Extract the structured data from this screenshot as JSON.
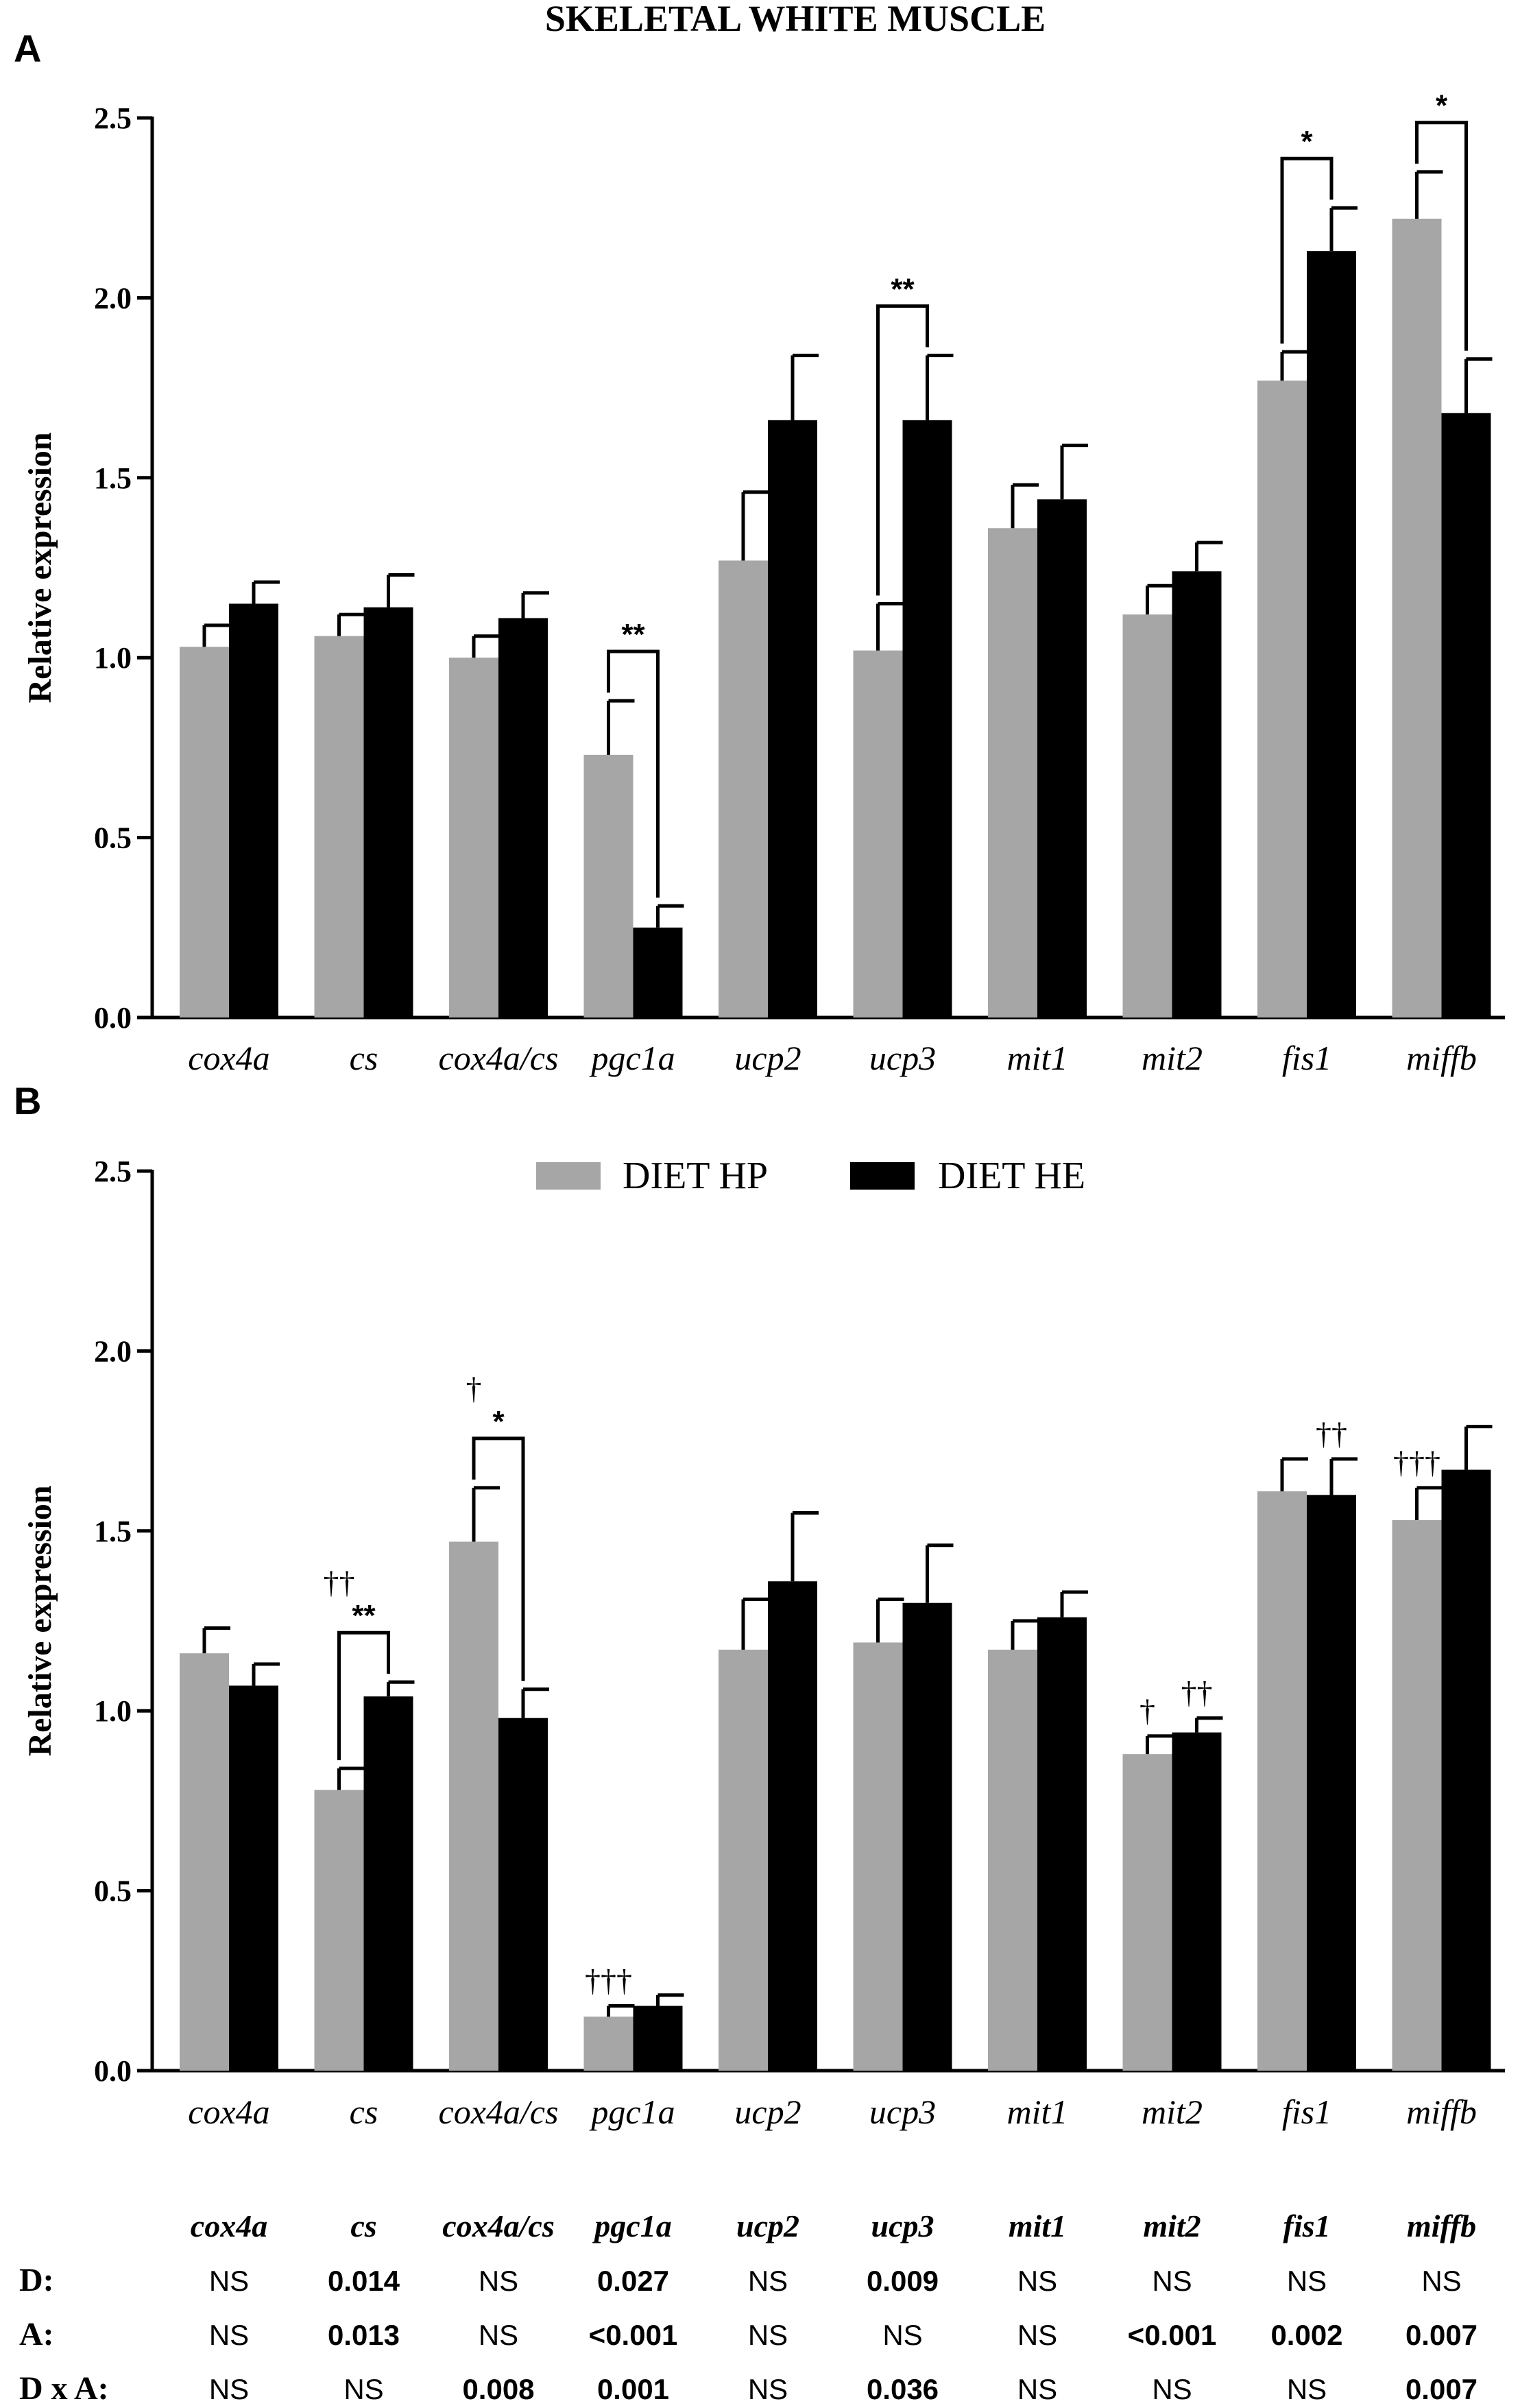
{
  "figure_title": "SKELETAL WHITE MUSCLE",
  "colors": {
    "hp": "#a6a6a6",
    "he": "#000000",
    "axis": "#000000"
  },
  "legend": [
    {
      "label": "DIET HP",
      "color": "#a6a6a6"
    },
    {
      "label": "DIET HE",
      "color": "#000000"
    }
  ],
  "chart_data": [
    {
      "panel_label": "A",
      "type": "bar",
      "ylabel": "Relative expression",
      "ylim": [
        0,
        2.5
      ],
      "yticks": [
        "0.0",
        "0.5",
        "1.0",
        "1.5",
        "2.0",
        "2.5"
      ],
      "categories": [
        "cox4a",
        "cs",
        "cox4a/cs",
        "pgc1a",
        "ucp2",
        "ucp3",
        "mit1",
        "mit2",
        "fis1",
        "miffb"
      ],
      "series": [
        {
          "name": "DIET HP",
          "values": [
            1.03,
            1.06,
            1.0,
            0.73,
            1.27,
            1.02,
            1.36,
            1.12,
            1.77,
            2.22
          ],
          "errors": [
            0.06,
            0.06,
            0.06,
            0.15,
            0.19,
            0.13,
            0.12,
            0.08,
            0.08,
            0.13
          ]
        },
        {
          "name": "DIET HE",
          "values": [
            1.15,
            1.14,
            1.11,
            0.25,
            1.66,
            1.66,
            1.44,
            1.24,
            2.13,
            1.68
          ],
          "errors": [
            0.06,
            0.09,
            0.07,
            0.06,
            0.18,
            0.18,
            0.15,
            0.08,
            0.12,
            0.15
          ]
        }
      ],
      "annotations": [
        {
          "category_index": 3,
          "text": "**"
        },
        {
          "category_index": 5,
          "text": "**"
        },
        {
          "category_index": 8,
          "text": "*"
        },
        {
          "category_index": 9,
          "text": "*"
        }
      ],
      "dagger_marks": []
    },
    {
      "panel_label": "B",
      "type": "bar",
      "ylabel": "Relative expression",
      "ylim": [
        0,
        2.5
      ],
      "yticks": [
        "0.0",
        "0.5",
        "1.0",
        "1.5",
        "2.0",
        "2.5"
      ],
      "categories": [
        "cox4a",
        "cs",
        "cox4a/cs",
        "pgc1a",
        "ucp2",
        "ucp3",
        "mit1",
        "mit2",
        "fis1",
        "miffb"
      ],
      "series": [
        {
          "name": "DIET HP",
          "values": [
            1.16,
            0.78,
            1.47,
            0.15,
            1.17,
            1.19,
            1.17,
            0.88,
            1.61,
            1.53
          ],
          "errors": [
            0.07,
            0.06,
            0.15,
            0.03,
            0.14,
            0.12,
            0.08,
            0.05,
            0.09,
            0.09
          ]
        },
        {
          "name": "DIET HE",
          "values": [
            1.07,
            1.04,
            0.98,
            0.18,
            1.36,
            1.3,
            1.26,
            0.94,
            1.6,
            1.67
          ],
          "errors": [
            0.06,
            0.04,
            0.08,
            0.03,
            0.19,
            0.16,
            0.07,
            0.04,
            0.1,
            0.12
          ]
        }
      ],
      "annotations": [
        {
          "category_index": 1,
          "text": "**"
        },
        {
          "category_index": 2,
          "text": "*"
        }
      ],
      "dagger_marks": [
        {
          "category_index": 1,
          "series": 0,
          "text": "††",
          "above": "bracket"
        },
        {
          "category_index": 2,
          "series": 0,
          "text": "†",
          "above": "bracket"
        },
        {
          "category_index": 3,
          "series": 0,
          "text": "†††",
          "above": "bar"
        },
        {
          "category_index": 7,
          "series": 0,
          "text": "†",
          "above": "bar"
        },
        {
          "category_index": 7,
          "series": 1,
          "text": "††",
          "above": "bar"
        },
        {
          "category_index": 8,
          "series": 1,
          "text": "††",
          "above": "bar"
        },
        {
          "category_index": 9,
          "series": 0,
          "text": "†††",
          "above": "bar"
        }
      ]
    }
  ],
  "stats_table": {
    "columns": [
      "cox4a",
      "cs",
      "cox4a/cs",
      "pgc1a",
      "ucp2",
      "ucp3",
      "mit1",
      "mit2",
      "fis1",
      "miffb"
    ],
    "rows": [
      {
        "label": "D:",
        "cells": [
          "NS",
          "0.014",
          "NS",
          "0.027",
          "NS",
          "0.009",
          "NS",
          "NS",
          "NS",
          "NS"
        ]
      },
      {
        "label": "A:",
        "cells": [
          "NS",
          "0.013",
          "NS",
          "<0.001",
          "NS",
          "NS",
          "NS",
          "<0.001",
          "0.002",
          "0.007"
        ]
      },
      {
        "label": "D x A:",
        "cells": [
          "NS",
          "NS",
          "0.008",
          "0.001",
          "NS",
          "0.036",
          "NS",
          "NS",
          "NS",
          "0.007"
        ]
      }
    ]
  }
}
